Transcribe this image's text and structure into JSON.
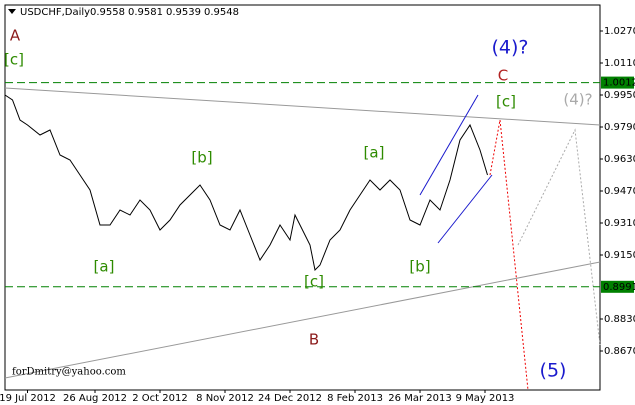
{
  "chart_data": {
    "type": "line",
    "title": "USDCHF,Daily",
    "quote": [
      0.9558,
      0.9581,
      0.9539,
      0.9548
    ],
    "footer": "forDmitry@yahoo.com",
    "color": "#000000",
    "x": [
      0,
      3,
      6,
      9,
      14,
      18,
      22,
      26,
      30,
      34,
      38,
      42,
      46,
      50,
      54,
      58,
      62,
      66,
      70,
      74,
      78,
      82,
      86,
      90,
      94,
      98,
      102,
      106,
      110,
      114,
      116,
      118,
      122,
      124,
      126,
      130,
      134,
      138,
      142,
      146,
      150,
      154,
      158,
      162,
      166,
      170,
      174,
      178,
      182,
      186,
      190,
      193
    ],
    "values": [
      0.995,
      0.9925,
      0.9825,
      0.98,
      0.975,
      0.9775,
      0.965,
      0.9625,
      0.955,
      0.9475,
      0.93,
      0.93,
      0.9375,
      0.935,
      0.9425,
      0.9375,
      0.9275,
      0.9325,
      0.94,
      0.945,
      0.95,
      0.9425,
      0.93,
      0.9275,
      0.9375,
      0.925,
      0.9125,
      0.92,
      0.93,
      0.9225,
      0.935,
      0.93,
      0.92,
      0.9075,
      0.91,
      0.9225,
      0.9275,
      0.9375,
      0.945,
      0.9525,
      0.9475,
      0.9525,
      0.9475,
      0.9325,
      0.93,
      0.9425,
      0.9375,
      0.9525,
      0.9725,
      0.98,
      0.9675,
      0.955
    ],
    "xlim": [
      0,
      238
    ],
    "xticks": [
      {
        "value": 9,
        "label": "19 Jul 2012"
      },
      {
        "value": 36,
        "label": "26 Aug 2012"
      },
      {
        "value": 62,
        "label": "2 Oct 2012"
      },
      {
        "value": 88,
        "label": "8 Nov 2012"
      },
      {
        "value": 114,
        "label": "24 Dec 2012"
      },
      {
        "value": 140,
        "label": "8 Feb 2013"
      },
      {
        "value": 166,
        "label": "26 Mar 2013"
      },
      {
        "value": 192,
        "label": "9 May 2013"
      }
    ],
    "ylim": [
      0.8475,
      1.04
    ],
    "yticks": [
      {
        "value": 1.027,
        "label": "1.0270"
      },
      {
        "value": 1.011,
        "label": "1.0110"
      },
      {
        "value": 0.995,
        "label": "0.9950"
      },
      {
        "value": 0.979,
        "label": "0.9790"
      },
      {
        "value": 0.963,
        "label": "0.9630"
      },
      {
        "value": 0.947,
        "label": "0.9470"
      },
      {
        "value": 0.931,
        "label": "0.9310"
      },
      {
        "value": 0.915,
        "label": "0.9150"
      },
      {
        "value": 0.883,
        "label": "0.8830"
      },
      {
        "value": 0.867,
        "label": "0.8670"
      }
    ],
    "levels": [
      1.0012,
      0.8991
    ],
    "level_color": "#008000",
    "annotations": [
      {
        "text": "A",
        "color": "#8b1a1a"
      },
      {
        "text": "[c]",
        "color": "#2e8b00"
      },
      {
        "text": "(4)?",
        "color": "#1a1acd"
      },
      {
        "text": "C",
        "color": "#b22222"
      },
      {
        "text": "[c]",
        "color": "#2e8b00"
      },
      {
        "text": "(4)?",
        "color": "#aaaaaa"
      },
      {
        "text": "[b]",
        "color": "#2e8b00"
      },
      {
        "text": "[a]",
        "color": "#2e8b00"
      },
      {
        "text": "[a]",
        "color": "#2e8b00"
      },
      {
        "text": "[b]",
        "color": "#2e8b00"
      },
      {
        "text": "[c]",
        "color": "#2e8b00"
      },
      {
        "text": "B",
        "color": "#8b1a1a"
      },
      {
        "text": "(5)",
        "color": "#1a1acd"
      }
    ]
  }
}
